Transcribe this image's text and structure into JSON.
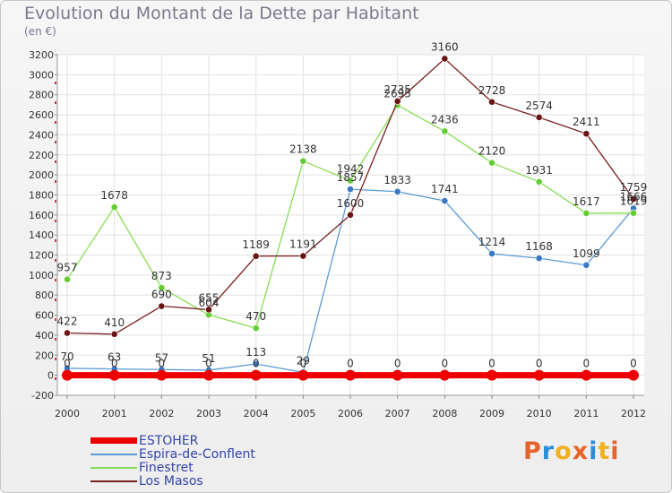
{
  "title": "Evolution du Montant de la Dette par Habitant",
  "subtitle": "(en €)",
  "logo": {
    "text": "Proxiti",
    "colors": [
      "#e8632a",
      "#2a8fd8",
      "#f0b020",
      "#e8632a",
      "#2a8fd8",
      "#f0b020",
      "#e8632a"
    ]
  },
  "chart_data": {
    "type": "line",
    "title": "Evolution du Montant de la Dette par Habitant",
    "subtitle": "(en €)",
    "xlabel": "",
    "ylabel": "",
    "x": [
      "2000",
      "2001",
      "2002",
      "2003",
      "2004",
      "2005",
      "2006",
      "2007",
      "2008",
      "2009",
      "2010",
      "2011",
      "2012"
    ],
    "ylim": [
      -200,
      3200
    ],
    "yticks": [
      -200,
      0,
      200,
      400,
      600,
      800,
      1000,
      1200,
      1400,
      1600,
      1800,
      2000,
      2200,
      2400,
      2600,
      2800,
      3000,
      3200
    ],
    "grid": true,
    "legend_position": "bottom-left",
    "series": [
      {
        "name": "ESTOHER",
        "color": "#ee0000",
        "thick": true,
        "values": [
          0,
          0,
          0,
          0,
          0,
          0,
          0,
          0,
          0,
          0,
          0,
          0,
          0
        ],
        "labels": [
          "0",
          "0",
          "0",
          "0",
          "0",
          "0",
          "0",
          "0",
          "0",
          "0",
          "0",
          "0",
          "0"
        ]
      },
      {
        "name": "Espira-de-Conflent",
        "color": "#5b9bd5",
        "point_color": "#3a78c4",
        "values": [
          70,
          63,
          57,
          51,
          113,
          29,
          1857,
          1833,
          1741,
          1214,
          1168,
          1099,
          1666
        ],
        "labels": [
          "70",
          "63",
          "57",
          "51",
          "113",
          "29",
          "1857",
          "1833",
          "1741",
          "1214",
          "1168",
          "1099",
          "1666"
        ]
      },
      {
        "name": "Finestret",
        "color": "#88dd55",
        "point_color": "#66cc33",
        "values": [
          957,
          1678,
          873,
          604,
          470,
          2138,
          1942,
          2695,
          2436,
          2120,
          1931,
          1617,
          1619
        ],
        "labels": [
          "957",
          "1678",
          "873",
          "604",
          "470",
          "2138",
          "1942",
          "2695",
          "2436",
          "2120",
          "1931",
          "1617",
          "1619"
        ]
      },
      {
        "name": "Los Masos",
        "color": "#7a1f1f",
        "point_color": "#6a1515",
        "values": [
          422,
          410,
          690,
          655,
          1189,
          1191,
          1600,
          2735,
          3160,
          2728,
          2574,
          2411,
          1759
        ],
        "labels": [
          "422",
          "410",
          "690",
          "655",
          "1189",
          "1191",
          "1600",
          "2735",
          "3160",
          "2728",
          "2574",
          "2411",
          "1759"
        ]
      }
    ]
  }
}
